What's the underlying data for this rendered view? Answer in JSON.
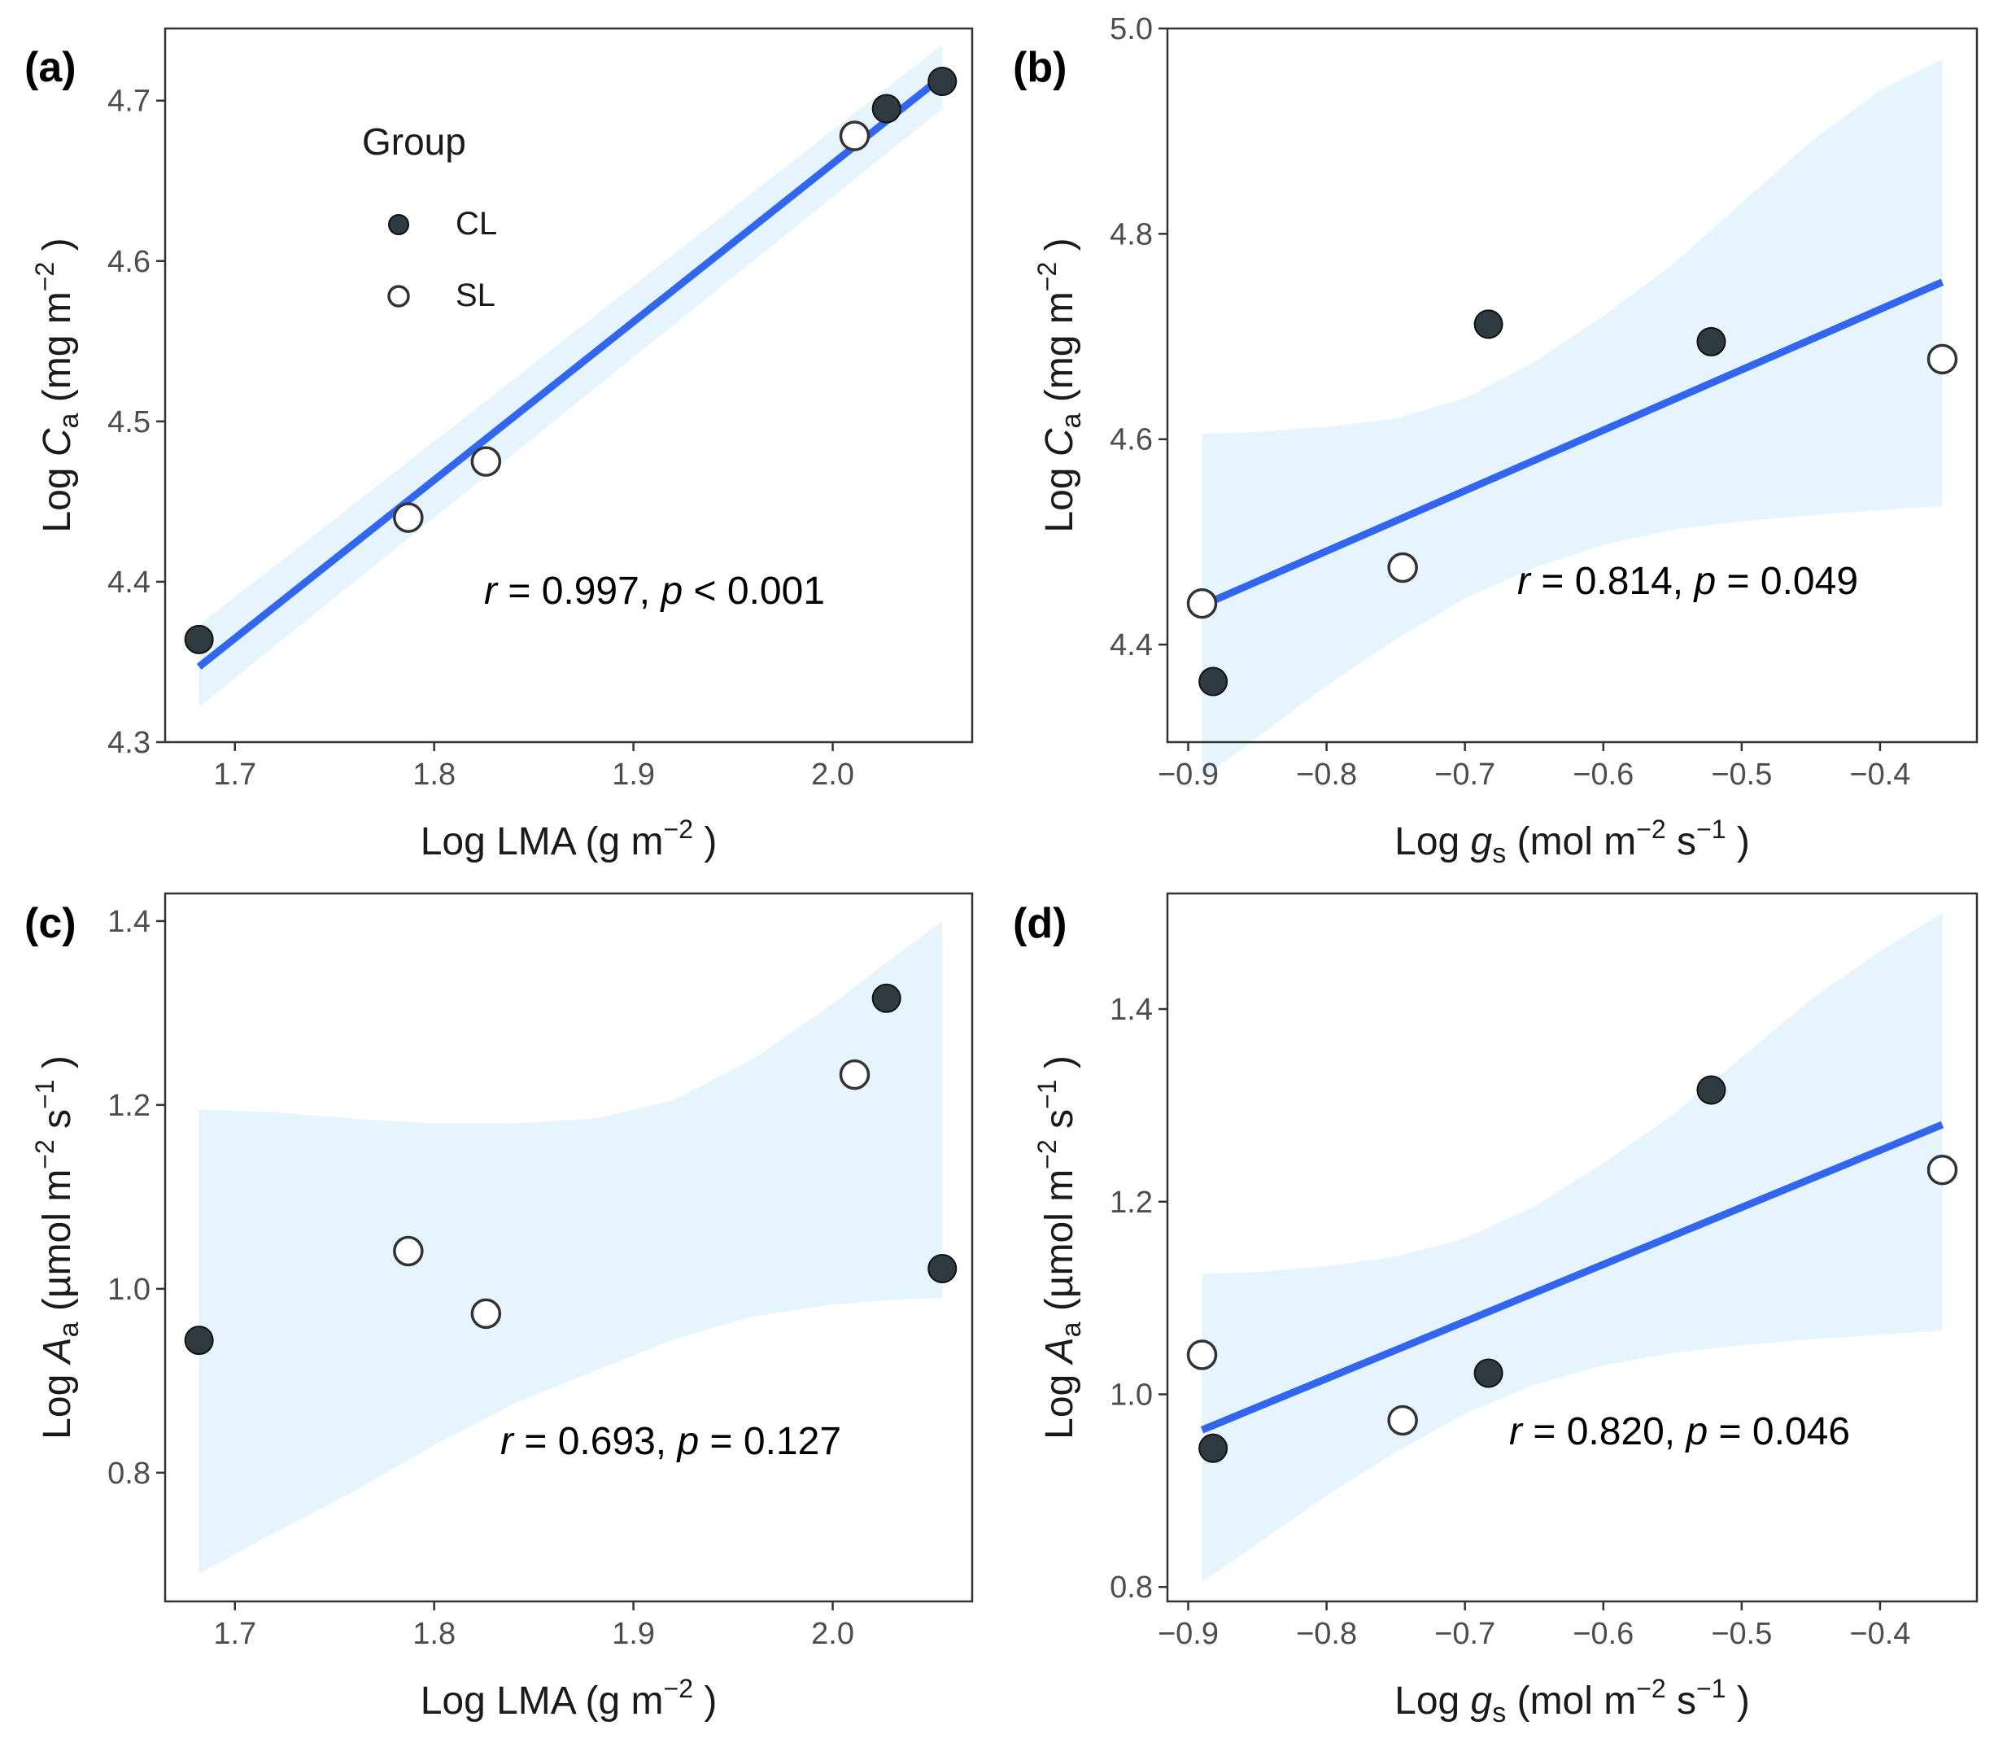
{
  "chart_data": [
    {
      "id": "a",
      "panel_label": "(a)",
      "type": "scatter",
      "xlim": [
        1.665,
        2.07
      ],
      "ylim": [
        4.3,
        4.745
      ],
      "xticks": [
        1.7,
        1.8,
        1.9,
        2.0
      ],
      "yticks": [
        4.3,
        4.4,
        4.5,
        4.6,
        4.7
      ],
      "xtick_labels": [
        "1.7",
        "1.8",
        "1.9",
        "2.0"
      ],
      "ytick_labels": [
        "4.3",
        "4.4",
        "4.5",
        "4.6",
        "4.7"
      ],
      "xlabel": {
        "pre": "Log LMA (g m",
        "sup": "−2",
        "post": " )"
      },
      "ylabel": {
        "pre": "Log  ",
        "it": "C",
        "sub": "a",
        "mid": "  (mg m",
        "sup": "−2",
        "post": " )"
      },
      "annotation": {
        "r_sym": "r",
        "r_text": " = 0.997, ",
        "p_sym": "p",
        "p_text": " < 0.001"
      },
      "points": [
        {
          "x": 1.682,
          "y": 4.364,
          "group": "CL"
        },
        {
          "x": 2.027,
          "y": 4.695,
          "group": "CL"
        },
        {
          "x": 2.055,
          "y": 4.712,
          "group": "CL"
        },
        {
          "x": 1.787,
          "y": 4.44,
          "group": "SL"
        },
        {
          "x": 1.826,
          "y": 4.475,
          "group": "SL"
        },
        {
          "x": 2.011,
          "y": 4.678,
          "group": "SL"
        }
      ],
      "fit_line": {
        "x": [
          1.682,
          2.055
        ],
        "y": [
          4.347,
          4.715
        ]
      },
      "ci_band": {
        "x": [
          1.682,
          2.055
        ],
        "lower": [
          4.322,
          4.695
        ],
        "upper": [
          4.373,
          4.735
        ]
      },
      "legend": {
        "title": "Group",
        "entries": [
          {
            "label": "CL",
            "marker": "filled"
          },
          {
            "label": "SL",
            "marker": "open"
          }
        ]
      }
    },
    {
      "id": "b",
      "panel_label": "(b)",
      "type": "scatter",
      "xlim": [
        -0.915,
        -0.33
      ],
      "ylim": [
        4.305,
        5.0
      ],
      "xticks": [
        -0.9,
        -0.8,
        -0.7,
        -0.6,
        -0.5,
        -0.4
      ],
      "yticks": [
        4.4,
        4.6,
        4.8,
        5.0
      ],
      "xtick_labels": [
        "−0.9",
        "−0.8",
        "−0.7",
        "−0.6",
        "−0.5",
        "−0.4"
      ],
      "ytick_labels": [
        "4.4",
        "4.6",
        "4.8",
        "5.0"
      ],
      "xlabel": {
        "pre": "Log  ",
        "it": "g",
        "sub": "s",
        "mid": "  (mol m",
        "sup": "−2",
        "mid2": " s",
        "sup2": "−1",
        "post": " )"
      },
      "ylabel": {
        "pre": "Log  ",
        "it": "C",
        "sub": "a",
        "mid": "  (mg m",
        "sup": "−2",
        "post": " )"
      },
      "annotation": {
        "r_sym": "r",
        "r_text": " = 0.814, ",
        "p_sym": "p",
        "p_text": " = 0.049"
      },
      "points": [
        {
          "x": -0.882,
          "y": 4.364,
          "group": "CL"
        },
        {
          "x": -0.683,
          "y": 4.712,
          "group": "CL"
        },
        {
          "x": -0.522,
          "y": 4.695,
          "group": "CL"
        },
        {
          "x": -0.89,
          "y": 4.44,
          "group": "SL"
        },
        {
          "x": -0.745,
          "y": 4.475,
          "group": "SL"
        },
        {
          "x": -0.355,
          "y": 4.678,
          "group": "SL"
        }
      ],
      "fit_line": {
        "x": [
          -0.89,
          -0.355
        ],
        "y": [
          4.438,
          4.753
        ]
      },
      "ci_band": {
        "x": [
          -0.89,
          -0.85,
          -0.8,
          -0.75,
          -0.7,
          -0.65,
          -0.6,
          -0.55,
          -0.5,
          -0.45,
          -0.4,
          -0.355
        ],
        "lower": [
          4.27,
          4.31,
          4.36,
          4.405,
          4.445,
          4.475,
          4.497,
          4.512,
          4.52,
          4.526,
          4.531,
          4.535
        ],
        "upper": [
          4.605,
          4.607,
          4.612,
          4.62,
          4.64,
          4.675,
          4.72,
          4.77,
          4.83,
          4.89,
          4.94,
          4.97
        ]
      }
    },
    {
      "id": "c",
      "panel_label": "(c)",
      "type": "scatter",
      "xlim": [
        1.665,
        2.07
      ],
      "ylim": [
        0.66,
        1.43
      ],
      "xticks": [
        1.7,
        1.8,
        1.9,
        2.0
      ],
      "yticks": [
        0.8,
        1.0,
        1.2,
        1.4
      ],
      "xtick_labels": [
        "1.7",
        "1.8",
        "1.9",
        "2.0"
      ],
      "ytick_labels": [
        "0.8",
        "1.0",
        "1.2",
        "1.4"
      ],
      "xlabel": {
        "pre": "Log LMA (g m",
        "sup": "−2",
        "post": " )"
      },
      "ylabel": {
        "pre": "Log  ",
        "it": "A",
        "sub": "a",
        "mid": "  (µmol m",
        "sup": "−2",
        "mid2": " s",
        "sup2": "−1",
        "post": " )"
      },
      "annotation": {
        "r_sym": "r",
        "r_text": " = 0.693, ",
        "p_sym": "p",
        "p_text": " = 0.127"
      },
      "points": [
        {
          "x": 1.682,
          "y": 0.944,
          "group": "CL"
        },
        {
          "x": 2.027,
          "y": 1.316,
          "group": "CL"
        },
        {
          "x": 2.055,
          "y": 1.022,
          "group": "CL"
        },
        {
          "x": 1.787,
          "y": 1.041,
          "group": "SL"
        },
        {
          "x": 1.826,
          "y": 0.973,
          "group": "SL"
        },
        {
          "x": 2.011,
          "y": 1.233,
          "group": "SL"
        }
      ],
      "fit_line": null,
      "ci_band": {
        "x": [
          1.682,
          1.72,
          1.76,
          1.8,
          1.84,
          1.88,
          1.92,
          1.96,
          2.0,
          2.03,
          2.055
        ],
        "lower": [
          0.69,
          0.735,
          0.78,
          0.83,
          0.875,
          0.91,
          0.945,
          0.97,
          0.983,
          0.988,
          0.99
        ],
        "upper": [
          1.195,
          1.192,
          1.185,
          1.18,
          1.18,
          1.185,
          1.205,
          1.25,
          1.31,
          1.36,
          1.4
        ]
      }
    },
    {
      "id": "d",
      "panel_label": "(d)",
      "type": "scatter",
      "xlim": [
        -0.915,
        -0.33
      ],
      "ylim": [
        0.785,
        1.52
      ],
      "xticks": [
        -0.9,
        -0.8,
        -0.7,
        -0.6,
        -0.5,
        -0.4
      ],
      "yticks": [
        0.8,
        1.0,
        1.2,
        1.4
      ],
      "xtick_labels": [
        "−0.9",
        "−0.8",
        "−0.7",
        "−0.6",
        "−0.5",
        "−0.4"
      ],
      "ytick_labels": [
        "0.8",
        "1.0",
        "1.2",
        "1.4"
      ],
      "xlabel": {
        "pre": "Log  ",
        "it": "g",
        "sub": "s",
        "mid": "  (mol m",
        "sup": "−2",
        "mid2": " s",
        "sup2": "−1",
        "post": " )"
      },
      "ylabel": {
        "pre": "Log  ",
        "it": "A",
        "sub": "a",
        "mid": "  (µmol m",
        "sup": "−2",
        "mid2": " s",
        "sup2": "−1",
        "post": " )"
      },
      "annotation": {
        "r_sym": "r",
        "r_text": " = 0.820, ",
        "p_sym": "p",
        "p_text": " = 0.046"
      },
      "points": [
        {
          "x": -0.882,
          "y": 0.944,
          "group": "CL"
        },
        {
          "x": -0.683,
          "y": 1.022,
          "group": "CL"
        },
        {
          "x": -0.522,
          "y": 1.316,
          "group": "CL"
        },
        {
          "x": -0.89,
          "y": 1.041,
          "group": "SL"
        },
        {
          "x": -0.745,
          "y": 0.973,
          "group": "SL"
        },
        {
          "x": -0.355,
          "y": 1.233,
          "group": "SL"
        }
      ],
      "fit_line": {
        "x": [
          -0.89,
          -0.355
        ],
        "y": [
          0.963,
          1.28
        ]
      },
      "ci_band": {
        "x": [
          -0.89,
          -0.85,
          -0.8,
          -0.75,
          -0.7,
          -0.65,
          -0.6,
          -0.55,
          -0.5,
          -0.45,
          -0.4,
          -0.355
        ],
        "lower": [
          0.805,
          0.845,
          0.895,
          0.94,
          0.98,
          1.01,
          1.03,
          1.043,
          1.051,
          1.057,
          1.062,
          1.066
        ],
        "upper": [
          1.125,
          1.127,
          1.133,
          1.143,
          1.162,
          1.195,
          1.24,
          1.29,
          1.35,
          1.41,
          1.46,
          1.5
        ]
      }
    }
  ]
}
